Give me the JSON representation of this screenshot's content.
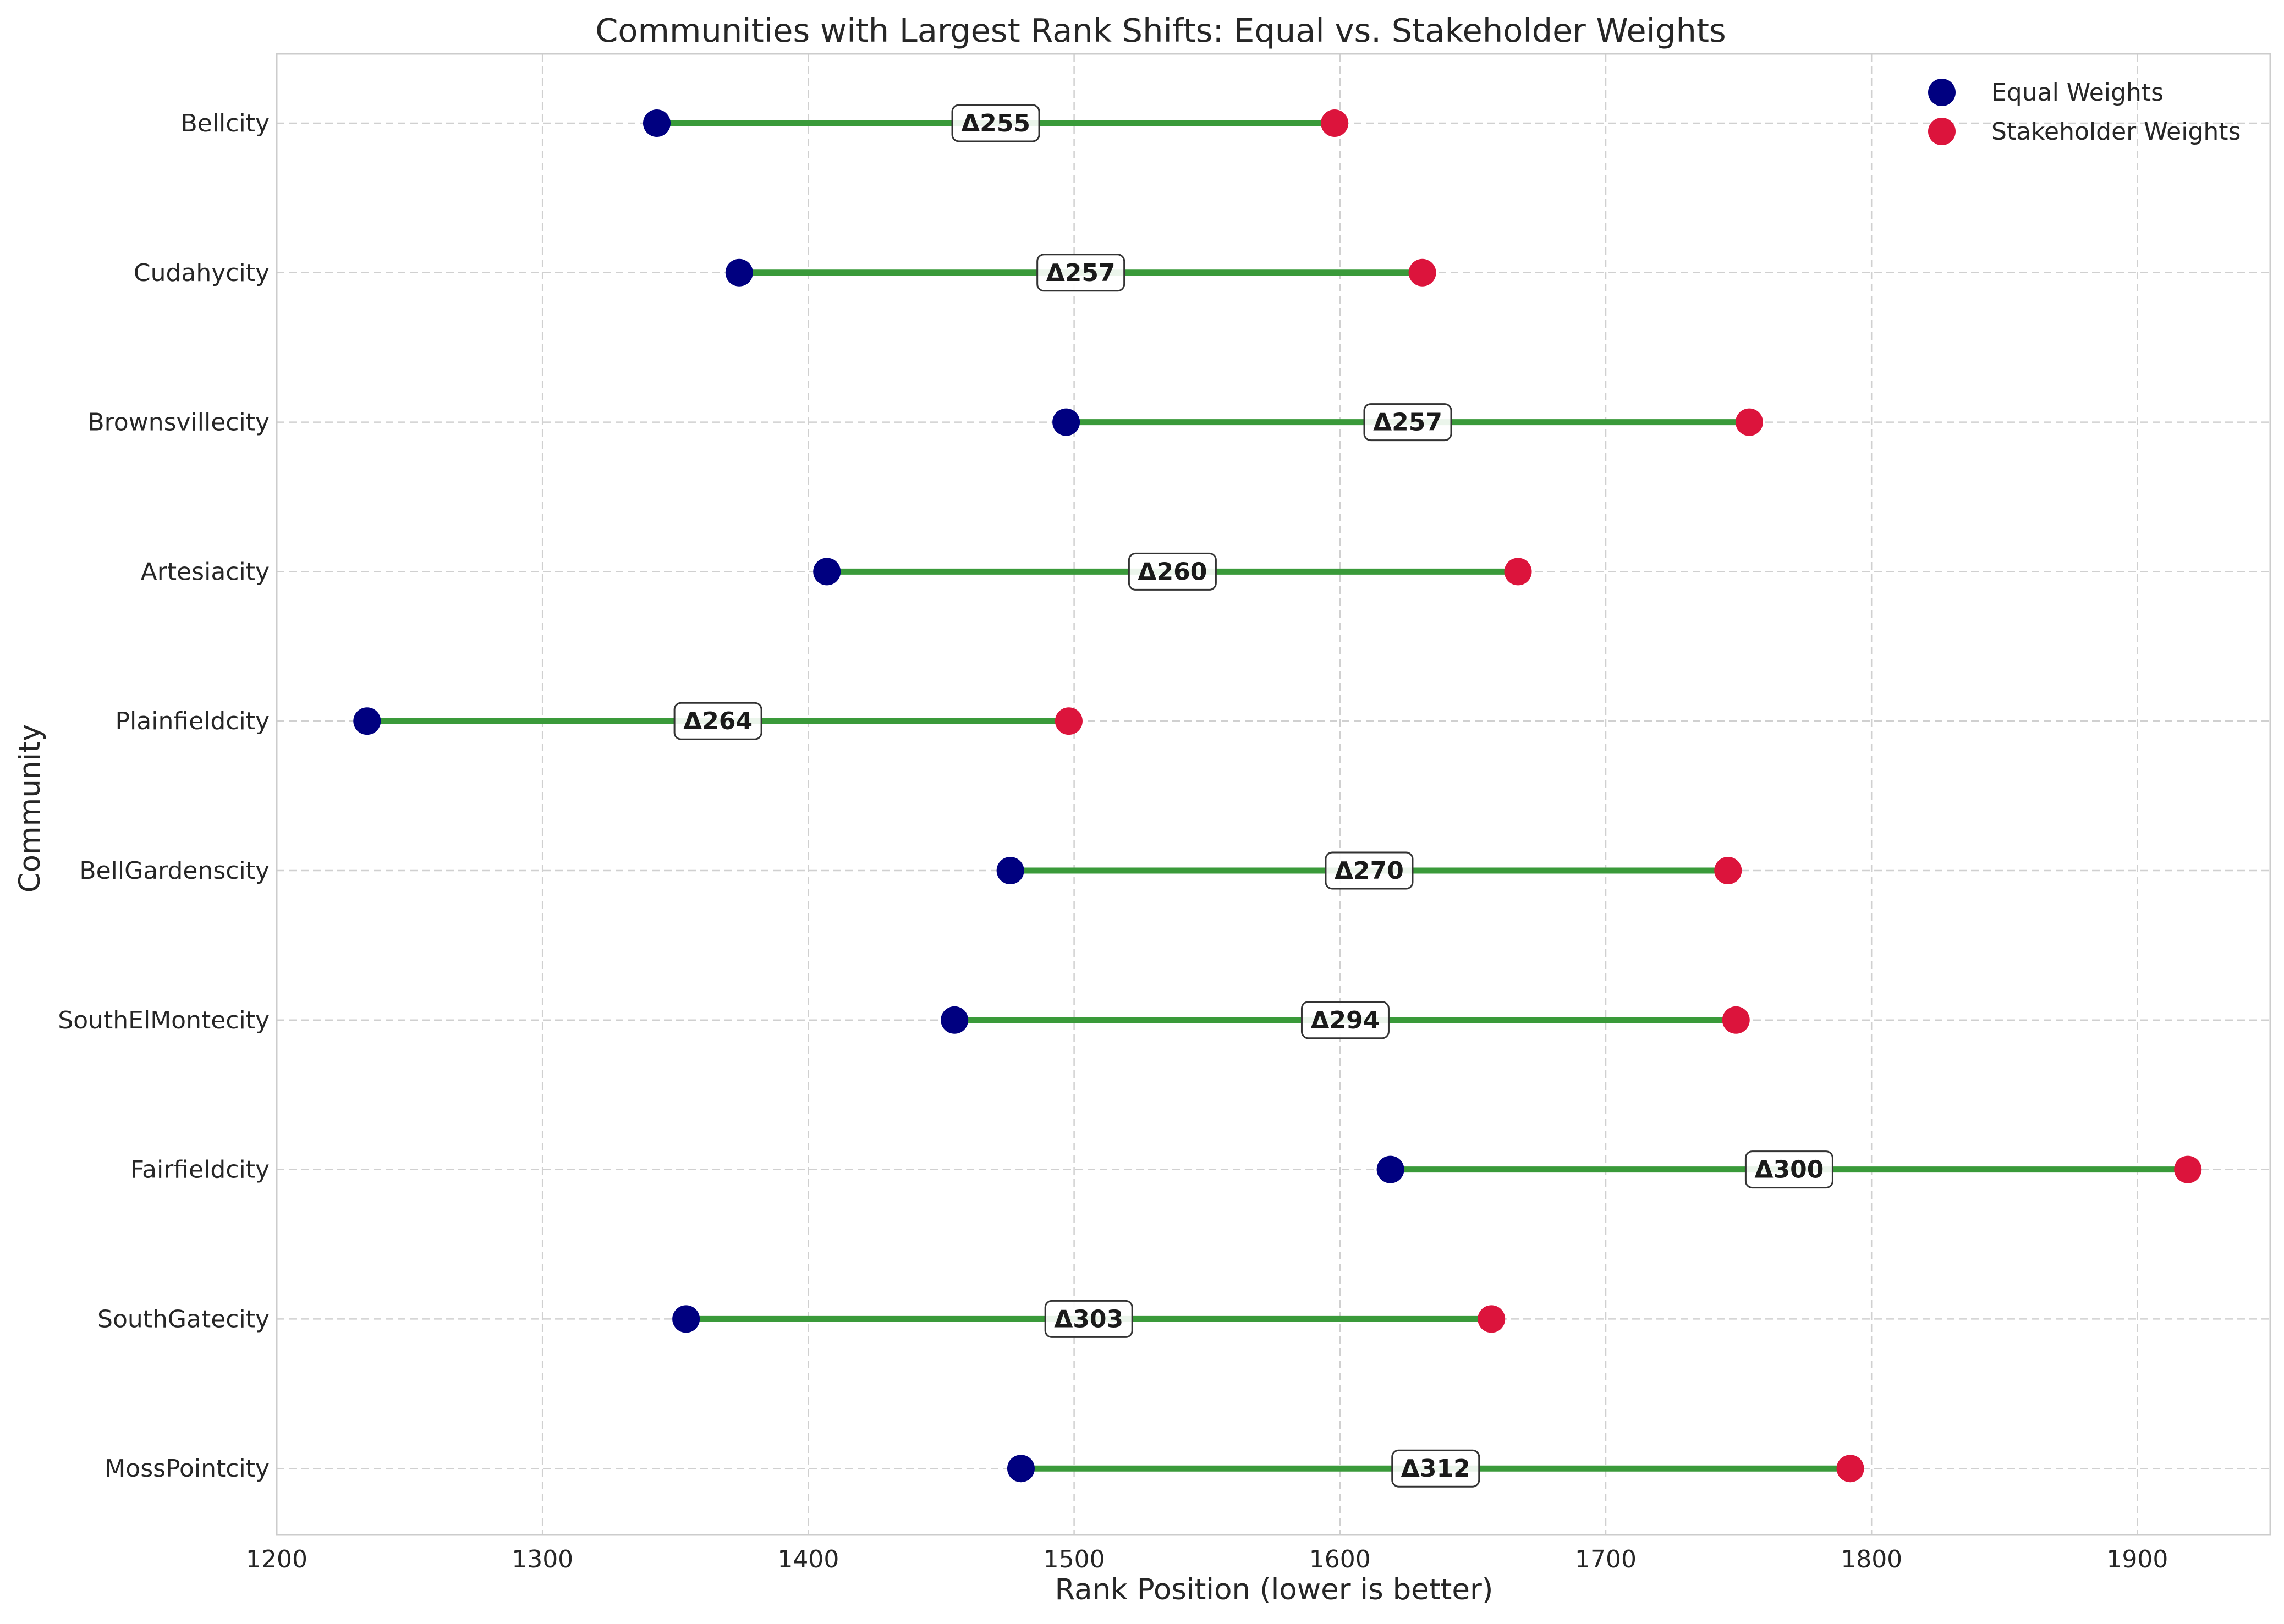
{
  "chart_data": {
    "type": "dumbbell",
    "title": "Communities with Largest Rank Shifts: Equal vs. Stakeholder Weights",
    "xlabel": "Rank Position (lower is better)",
    "ylabel": "Community",
    "xlim": [
      1200,
      1950
    ],
    "xticks": [
      "1200",
      "1300",
      "1400",
      "1500",
      "1600",
      "1700",
      "1800",
      "1900"
    ],
    "xtick_values": [
      1200,
      1300,
      1400,
      1500,
      1600,
      1700,
      1800,
      1900
    ],
    "grid": true,
    "legend_placement": "top-right",
    "colors": {
      "equal": "#000080",
      "stakeholder": "#DC143C",
      "connector": "#3a9a3a"
    },
    "series": [
      {
        "name": "Equal Weights",
        "key": "equal"
      },
      {
        "name": "Stakeholder Weights",
        "key": "stakeholder"
      }
    ],
    "communities": [
      {
        "name": "Bellcity",
        "equal": 1343,
        "stakeholder": 1598,
        "delta_label": "Δ255"
      },
      {
        "name": "Cudahycity",
        "equal": 1374,
        "stakeholder": 1631,
        "delta_label": "Δ257"
      },
      {
        "name": "Brownsvillecity",
        "equal": 1497,
        "stakeholder": 1754,
        "delta_label": "Δ257"
      },
      {
        "name": "Artesiacity",
        "equal": 1407,
        "stakeholder": 1667,
        "delta_label": "Δ260"
      },
      {
        "name": "Plainfieldcity",
        "equal": 1234,
        "stakeholder": 1498,
        "delta_label": "Δ264"
      },
      {
        "name": "BellGardenscity",
        "equal": 1476,
        "stakeholder": 1746,
        "delta_label": "Δ270"
      },
      {
        "name": "SouthElMontecity",
        "equal": 1455,
        "stakeholder": 1749,
        "delta_label": "Δ294"
      },
      {
        "name": "Fairfieldcity",
        "equal": 1619,
        "stakeholder": 1919,
        "delta_label": "Δ300"
      },
      {
        "name": "SouthGatecity",
        "equal": 1354,
        "stakeholder": 1657,
        "delta_label": "Δ303"
      },
      {
        "name": "MossPointcity",
        "equal": 1480,
        "stakeholder": 1792,
        "delta_label": "Δ312"
      }
    ]
  }
}
